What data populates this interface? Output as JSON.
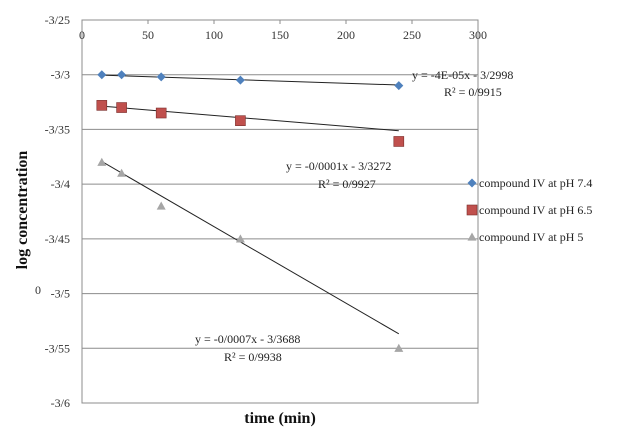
{
  "chart_data": {
    "type": "scatter",
    "xlabel": "time (min)",
    "ylabel": "log concentration",
    "ylabel_sub": "0",
    "xlim": [
      0,
      300
    ],
    "ylim": [
      -3.6,
      -3.25
    ],
    "x_ticks": [
      0,
      50,
      100,
      150,
      200,
      250,
      300
    ],
    "x_tick_labels": [
      "0",
      "50",
      "100",
      "150",
      "200",
      "250",
      "300"
    ],
    "y_ticks": [
      -3.25,
      -3.3,
      -3.35,
      -3.4,
      -3.45,
      -3.5,
      -3.55,
      -3.6
    ],
    "y_tick_labels": [
      "-3/25",
      "-3/3",
      "-3/35",
      "-3/4",
      "-3/45",
      "-3/5",
      "-3/55",
      "-3/6"
    ],
    "grid": "horizontal",
    "legend_position": "right",
    "series": [
      {
        "name": "compound IV at pH 7.4",
        "color": "#4f81bd",
        "marker": "diamond",
        "x": [
          15,
          30,
          60,
          120,
          240
        ],
        "y": [
          -3.3,
          -3.3,
          -3.302,
          -3.305,
          -3.31
        ],
        "trend": {
          "slope": -4e-05,
          "intercept": -3.2998
        },
        "equation": "y = -4E-05x  - 3/2998",
        "r2": "R² = 0/9915"
      },
      {
        "name": "compound IV at pH 6.5",
        "color": "#c0504d",
        "marker": "square",
        "x": [
          15,
          30,
          60,
          120,
          240
        ],
        "y": [
          -3.328,
          -3.33,
          -3.335,
          -3.342,
          -3.361
        ],
        "trend": {
          "slope": -0.0001,
          "intercept": -3.3272
        },
        "equation": "y = -0/0001x  - 3/3272",
        "r2": "R² = 0/9927"
      },
      {
        "name": "compound IV at pH 5",
        "color": "#a6a6a6",
        "marker": "triangle",
        "x": [
          15,
          30,
          60,
          120,
          240
        ],
        "y": [
          -3.38,
          -3.39,
          -3.42,
          -3.45,
          -3.55
        ],
        "trend": {
          "slope": -0.0007,
          "intercept": -3.3688
        },
        "equation": "y = -0/0007x  - 3/3688",
        "r2": "R² = 0/9938"
      }
    ]
  }
}
